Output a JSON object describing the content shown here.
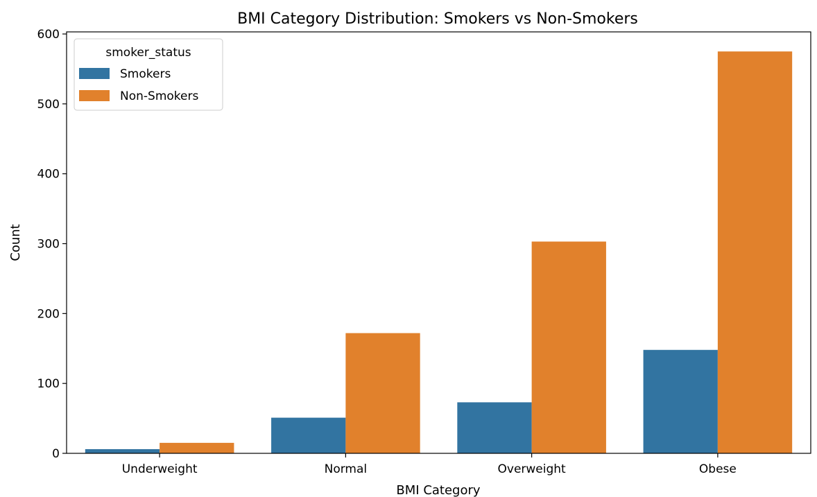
{
  "chart_data": {
    "type": "bar",
    "title": "BMI Category Distribution: Smokers vs Non-Smokers",
    "xlabel": "BMI Category",
    "ylabel": "Count",
    "categories": [
      "Underweight",
      "Normal",
      "Overweight",
      "Obese"
    ],
    "series": [
      {
        "name": "Smokers",
        "color": "#3274a1",
        "values": [
          6,
          51,
          73,
          148
        ]
      },
      {
        "name": "Non-Smokers",
        "color": "#e1812c",
        "values": [
          15,
          172,
          303,
          575
        ]
      }
    ],
    "ylim": [
      0,
      603
    ],
    "yticks": [
      0,
      100,
      200,
      300,
      400,
      500,
      600
    ],
    "legend": {
      "title": "smoker_status",
      "placement": "top-left"
    },
    "grid": false
  }
}
